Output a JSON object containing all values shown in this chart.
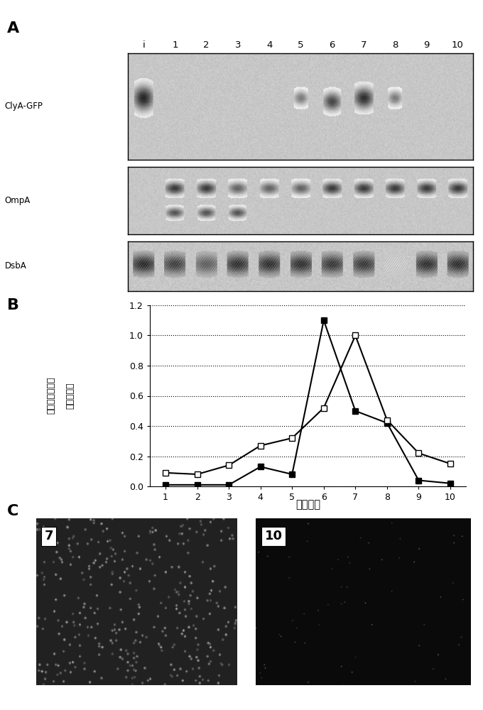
{
  "panel_labels": [
    "A",
    "B",
    "C"
  ],
  "lane_labels": [
    "i",
    "1",
    "2",
    "3",
    "4",
    "5",
    "6",
    "7",
    "8",
    "9",
    "10"
  ],
  "fraction_labels": [
    "1",
    "2",
    "3",
    "4",
    "5",
    "6",
    "7",
    "8",
    "9",
    "10"
  ],
  "x_data": [
    1,
    2,
    3,
    4,
    5,
    6,
    7,
    8,
    9,
    10
  ],
  "filled_square_data": [
    0.01,
    0.01,
    0.01,
    0.13,
    0.08,
    1.1,
    0.5,
    0.42,
    0.04,
    0.02
  ],
  "open_square_data": [
    0.09,
    0.08,
    0.14,
    0.27,
    0.32,
    0.52,
    1.0,
    0.44,
    0.22,
    0.15
  ],
  "ylabel_line1": "相对蛋白质含量",
  "ylabel_line2": "与荧光活性",
  "xlabel_chinese": "流分编号",
  "ylim": [
    0.0,
    1.2
  ],
  "yticks": [
    0.0,
    0.2,
    0.4,
    0.6,
    0.8,
    1.0,
    1.2
  ],
  "blot_bg": 0.78,
  "label7": "7",
  "label10": "10",
  "blot_label_ClyA": "ClyA-GFP",
  "blot_label_OmpA": "OmpA",
  "blot_label_DsbA": "DsbA"
}
